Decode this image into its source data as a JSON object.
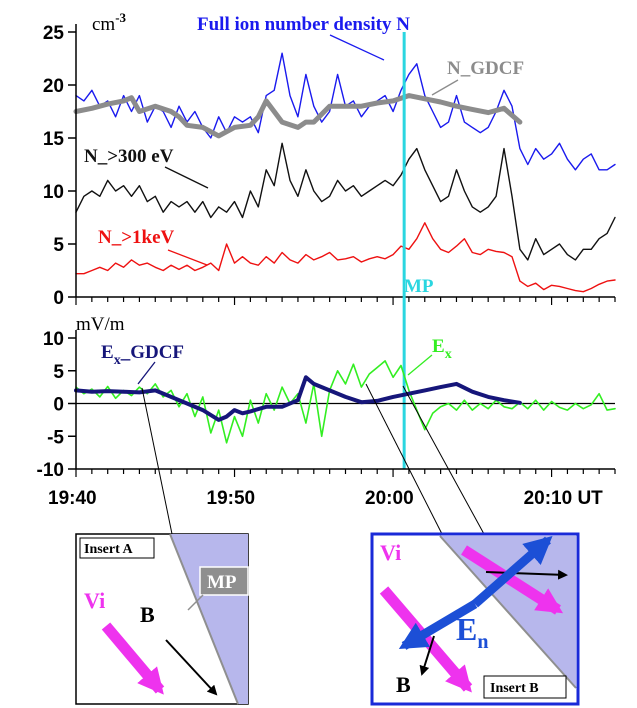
{
  "chart_data": [
    {
      "type": "line",
      "unit_label": "cm",
      "unit_exponent": "-3",
      "ylim": [
        0,
        25
      ],
      "yticks": [
        0,
        5,
        10,
        15,
        20,
        25
      ],
      "xlim_minutes": [
        0,
        34
      ],
      "annotations": {
        "full": "Full ion number density  N",
        "gdcf": "N_GDCF",
        "n300": "N_>300 eV",
        "n1kev": "N_>1keV",
        "mp": "MP"
      },
      "colors": {
        "full": "#1a1aee",
        "gdcf": "#8c8c8c",
        "n300": "#111111",
        "n1kev": "#ee1111",
        "mp": "#2ad6e0"
      },
      "series": [
        {
          "key": "full",
          "x": [
            0,
            0.5,
            1,
            1.5,
            2,
            2.5,
            3,
            3.5,
            4,
            4.5,
            5,
            5.5,
            6,
            6.5,
            7,
            7.5,
            8,
            8.5,
            9,
            9.5,
            10,
            10.5,
            11,
            11.5,
            12,
            12.5,
            13,
            13.5,
            14,
            14.5,
            15,
            15.5,
            16,
            16.5,
            17,
            17.5,
            18,
            18.5,
            19,
            19.5,
            20,
            20.5,
            21,
            21.5,
            22,
            22.5,
            23,
            23.5,
            24,
            24.5,
            25,
            25.5,
            26,
            26.5,
            27,
            27.5,
            28,
            28.5,
            29,
            29.5,
            30,
            30.5,
            31,
            31.5,
            32,
            32.5,
            33,
            33.5,
            34
          ],
          "y": [
            19,
            18.5,
            19.5,
            18,
            18.5,
            17,
            19,
            17.5,
            19,
            16.5,
            18,
            17.5,
            16,
            18,
            16.5,
            17.5,
            16,
            15,
            17,
            15.5,
            17,
            16.5,
            17,
            15.5,
            19,
            19.5,
            23,
            19,
            17,
            21,
            18,
            16.5,
            17.5,
            21,
            18,
            18.5,
            17,
            18,
            18.5,
            19,
            17.5,
            19.5,
            21,
            22,
            19,
            17.5,
            16,
            16.5,
            19,
            16.5,
            16,
            15.5,
            16,
            17.5,
            19.5,
            18,
            14,
            12.5,
            14,
            13,
            13.5,
            14.5,
            13,
            12,
            13,
            13.5,
            12,
            12,
            12.5
          ]
        },
        {
          "key": "gdcf",
          "x": [
            0,
            1,
            2,
            3,
            3.5,
            4,
            5,
            6,
            6.5,
            7,
            8,
            9,
            10,
            11,
            11.5,
            12,
            13,
            14,
            14.5,
            15,
            16,
            17,
            18,
            19,
            20,
            21,
            22,
            23,
            24,
            25,
            26,
            27,
            28
          ],
          "y": [
            17.5,
            17.8,
            18.2,
            18.5,
            18.8,
            17.5,
            18,
            17.5,
            17,
            16.2,
            16,
            15.2,
            16,
            16.2,
            17,
            18.5,
            16.5,
            16,
            16.5,
            16.5,
            18,
            18,
            18,
            18.3,
            18.5,
            19,
            18.7,
            18.4,
            18,
            17.7,
            17.4,
            17.8,
            16.5
          ]
        },
        {
          "key": "n300",
          "x": [
            0,
            0.5,
            1,
            1.5,
            2,
            2.5,
            3,
            3.5,
            4,
            4.5,
            5,
            5.5,
            6,
            6.5,
            7,
            7.5,
            8,
            8.5,
            9,
            9.5,
            10,
            10.5,
            11,
            11.5,
            12,
            12.5,
            13,
            13.5,
            14,
            14.5,
            15,
            15.5,
            16,
            16.5,
            17,
            17.5,
            18,
            18.5,
            19,
            19.5,
            20,
            20.5,
            21,
            21.5,
            22,
            22.5,
            23,
            23.5,
            24,
            24.5,
            25,
            25.5,
            26,
            26.5,
            27,
            27.5,
            28,
            28.5,
            29,
            29.5,
            30,
            30.5,
            31,
            31.5,
            32,
            32.5,
            33,
            33.5,
            34
          ],
          "y": [
            8,
            9.5,
            10,
            9.5,
            11,
            10,
            10.5,
            9.5,
            10.5,
            9,
            9.5,
            8,
            9,
            8.5,
            9,
            8,
            9,
            7.5,
            8.5,
            8,
            9,
            7.5,
            10,
            8.5,
            12,
            10.5,
            14.5,
            11,
            9.5,
            12,
            10,
            9,
            9.5,
            11,
            10,
            10.5,
            9.5,
            10,
            10.5,
            11,
            10.5,
            11.5,
            13,
            14,
            12,
            10.5,
            9,
            9.5,
            12,
            10,
            8.5,
            8,
            8.5,
            9.5,
            14,
            9.5,
            4.5,
            3.5,
            5.5,
            4,
            4.5,
            5,
            4,
            3.5,
            4.5,
            4.5,
            5.5,
            6,
            7.5
          ]
        },
        {
          "key": "n1kev",
          "x": [
            0,
            0.5,
            1,
            1.5,
            2,
            2.5,
            3,
            3.5,
            4,
            4.5,
            5,
            5.5,
            6,
            6.5,
            7,
            7.5,
            8,
            8.5,
            9,
            9.5,
            10,
            10.5,
            11,
            11.5,
            12,
            12.5,
            13,
            13.5,
            14,
            14.5,
            15,
            15.5,
            16,
            16.5,
            17,
            17.5,
            18,
            18.5,
            19,
            19.5,
            20,
            20.5,
            21,
            21.5,
            22,
            22.5,
            23,
            23.5,
            24,
            24.5,
            25,
            25.5,
            26,
            26.5,
            27,
            27.5,
            28,
            28.5,
            29,
            29.5,
            30,
            30.5,
            31,
            31.5,
            32,
            32.5,
            33,
            33.5,
            34
          ],
          "y": [
            2.2,
            2.2,
            2.5,
            2.8,
            2.5,
            3.2,
            2.8,
            3.5,
            3,
            3.2,
            2.8,
            2.5,
            3,
            2.6,
            3,
            2.5,
            2.8,
            3.2,
            2.5,
            5,
            3.2,
            3.8,
            3.2,
            3,
            3.8,
            3.2,
            4.2,
            3.5,
            3.2,
            4,
            3.5,
            3.8,
            4.2,
            3.5,
            3.6,
            3.8,
            3.3,
            3.6,
            3.8,
            3.6,
            4,
            4.8,
            4.5,
            5.5,
            7,
            5.5,
            4.5,
            4.2,
            4.8,
            5.5,
            4.2,
            4,
            4.5,
            4.3,
            4.2,
            3.8,
            1.5,
            1,
            1.3,
            0.7,
            1.1,
            1,
            0.8,
            0.6,
            0.5,
            0.8,
            1.2,
            1.5,
            1.6
          ]
        }
      ],
      "mp_x": 20.7
    },
    {
      "type": "line",
      "unit_label": "mV/m",
      "ylim": [
        -10,
        10
      ],
      "yticks": [
        -10,
        -5,
        0,
        5,
        10
      ],
      "xlim_minutes": [
        0,
        34
      ],
      "xticks": [
        0,
        10,
        20,
        30
      ],
      "xtick_labels": [
        "19:40",
        "19:50",
        "20:00",
        "20:10 UT"
      ],
      "annotations": {
        "ex_gdcf_base": "E",
        "ex_gdcf_sub": "x",
        "ex_gdcf_rest": "_GDCF",
        "ex_base": "E",
        "ex_sub": "x"
      },
      "colors": {
        "ex": "#33ee22",
        "ex_gdcf": "#16167a",
        "zero": "#000000"
      },
      "series": [
        {
          "key": "ex",
          "x": [
            0,
            0.5,
            1,
            1.5,
            2,
            2.5,
            3,
            3.5,
            4,
            4.5,
            5,
            5.5,
            6,
            6.5,
            7,
            7.5,
            8,
            8.5,
            9,
            9.5,
            10,
            10.5,
            11,
            11.5,
            12,
            12.5,
            13,
            13.5,
            14,
            14.5,
            15,
            15.5,
            16,
            16.5,
            17,
            17.5,
            18,
            18.5,
            19,
            19.5,
            20,
            20.5,
            21,
            21.5,
            22,
            22.5,
            23,
            23.5,
            24,
            24.5,
            25,
            25.5,
            26,
            26.5,
            27,
            27.5,
            28,
            28.5,
            29,
            29.5,
            30,
            30.5,
            31,
            31.5,
            32,
            32.5,
            33,
            33.5,
            34
          ],
          "y": [
            2.5,
            1.5,
            2.2,
            1,
            2.6,
            0.8,
            2,
            1.2,
            2.5,
            1.5,
            3,
            1,
            2,
            -0.5,
            1.5,
            -2,
            1,
            -4.5,
            -1,
            -6,
            -2,
            -5,
            0.5,
            -3,
            1.5,
            -1,
            2.5,
            0,
            1.5,
            -3,
            3,
            -5,
            2,
            5,
            3,
            6,
            2.5,
            4.5,
            5.5,
            6.5,
            4,
            5.8,
            2,
            -1,
            -4,
            -1.5,
            -0.5,
            0,
            -1,
            0.5,
            -1,
            0,
            -0.8,
            0.5,
            -0.5,
            -0.8,
            0.2,
            -0.8,
            0.5,
            -1,
            0.3,
            -0.6,
            -1,
            0,
            -0.8,
            -0.2,
            1.5,
            -1,
            -0.8
          ]
        },
        {
          "key": "ex_gdcf",
          "x": [
            0,
            1,
            2,
            3,
            4,
            5,
            6,
            7,
            8,
            9,
            9.5,
            10,
            10.5,
            11,
            12,
            13,
            14,
            14.5,
            15,
            16,
            17,
            18,
            19,
            20,
            21,
            22,
            23,
            24,
            25,
            26,
            27,
            28
          ],
          "y": [
            2,
            1.8,
            1.9,
            1.8,
            1.7,
            2,
            1,
            0,
            -1,
            -2.5,
            -2,
            -1,
            -1.5,
            -1.2,
            -0.5,
            -0.5,
            0.5,
            4,
            3,
            2,
            1,
            0.2,
            0.4,
            1,
            1.5,
            2,
            2.5,
            3,
            1.8,
            1,
            0.5,
            0.1
          ]
        }
      ],
      "mp_x": 20.7
    }
  ],
  "insets": {
    "a": {
      "title": "Insert A",
      "mp": "MP",
      "vi": "Vi",
      "b": "B",
      "colors": {
        "fill": "#b7b7ec",
        "vi": "#ee33ee",
        "mp_box": "#8f8f8f"
      }
    },
    "b": {
      "title": "Insert B",
      "vi": "Vi",
      "e_base": "E",
      "e_sub": "n",
      "b": "B",
      "colors": {
        "fill": "#b7b7ec",
        "vi": "#ee33ee",
        "en": "#1c4fd6",
        "border": "#1a2ad8"
      }
    }
  }
}
